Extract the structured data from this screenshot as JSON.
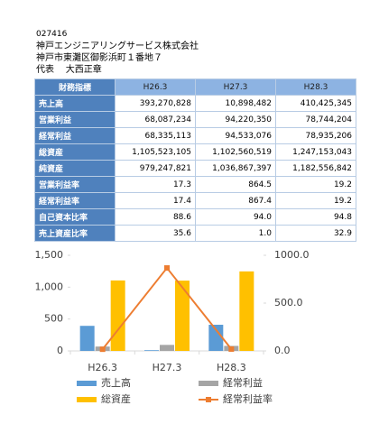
{
  "header": {
    "code": "027416",
    "company": "神戸エンジニアリングサービス株式会社",
    "address": "神戸市東灘区御影浜町１番地７",
    "rep_label": "代表",
    "rep_name": "大西正章"
  },
  "table": {
    "columns": [
      "財務指標",
      "H26.3",
      "H27.3",
      "H28.3"
    ],
    "rows": [
      [
        "売上高",
        "393,270,828",
        "10,898,482",
        "410,425,345"
      ],
      [
        "営業利益",
        "68,087,234",
        "94,220,350",
        "78,744,204"
      ],
      [
        "経常利益",
        "68,335,113",
        "94,533,076",
        "78,935,206"
      ],
      [
        "総資産",
        "1,105,523,105",
        "1,102,560,519",
        "1,247,153,043"
      ],
      [
        "純資産",
        "979,247,821",
        "1,036,867,397",
        "1,182,556,842"
      ],
      [
        "営業利益率",
        "17.3",
        "864.5",
        "19.2"
      ],
      [
        "経常利益率",
        "17.4",
        "867.4",
        "19.2"
      ],
      [
        "自己資本比率",
        "88.6",
        "94.0",
        "94.8"
      ],
      [
        "売上資産比率",
        "35.6",
        "1.0",
        "32.9"
      ]
    ]
  },
  "chart_data": {
    "type": "bar",
    "categories": [
      "H26.3",
      "H27.3",
      "H28.3"
    ],
    "series": [
      {
        "name": "売上高",
        "color": "#5b9bd5",
        "values": [
          393.3,
          10.9,
          410.4
        ]
      },
      {
        "name": "経常利益",
        "color": "#a5a5a5",
        "values": [
          68.3,
          94.5,
          78.9
        ]
      },
      {
        "name": "総資産",
        "color": "#ffc000",
        "values": [
          1105.5,
          1102.6,
          1247.2
        ]
      },
      {
        "name": "経常利益率",
        "color": "#ed7d31",
        "values": [
          17.4,
          867.4,
          19.2
        ],
        "axis": "y2",
        "type": "line"
      }
    ],
    "ylim": [
      0,
      1500
    ],
    "yticks": [
      0,
      500,
      {
        "value": 1000,
        "label": "1,000"
      },
      {
        "value": 1500,
        "label": "1,500"
      }
    ],
    "y2lim": [
      0,
      1000
    ],
    "y2ticks": [
      {
        "value": 0,
        "label": "0.0"
      },
      {
        "value": 500,
        "label": "500.0"
      },
      {
        "value": 1000,
        "label": "1000.0"
      }
    ]
  }
}
